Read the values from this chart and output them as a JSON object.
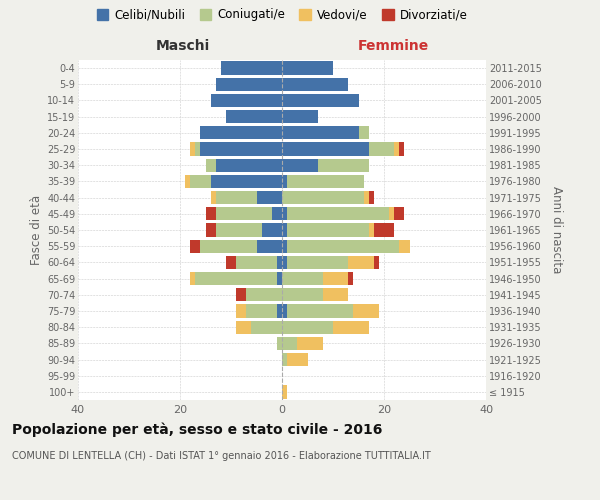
{
  "age_groups": [
    "100+",
    "95-99",
    "90-94",
    "85-89",
    "80-84",
    "75-79",
    "70-74",
    "65-69",
    "60-64",
    "55-59",
    "50-54",
    "45-49",
    "40-44",
    "35-39",
    "30-34",
    "25-29",
    "20-24",
    "15-19",
    "10-14",
    "5-9",
    "0-4"
  ],
  "birth_years": [
    "≤ 1915",
    "1916-1920",
    "1921-1925",
    "1926-1930",
    "1931-1935",
    "1936-1940",
    "1941-1945",
    "1946-1950",
    "1951-1955",
    "1956-1960",
    "1961-1965",
    "1966-1970",
    "1971-1975",
    "1976-1980",
    "1981-1985",
    "1986-1990",
    "1991-1995",
    "1996-2000",
    "2001-2005",
    "2006-2010",
    "2011-2015"
  ],
  "male": {
    "celibi": [
      0,
      0,
      0,
      0,
      0,
      1,
      0,
      1,
      1,
      5,
      4,
      2,
      5,
      14,
      13,
      16,
      16,
      11,
      14,
      13,
      12
    ],
    "coniugati": [
      0,
      0,
      0,
      1,
      6,
      6,
      7,
      16,
      8,
      11,
      9,
      11,
      8,
      4,
      2,
      1,
      0,
      0,
      0,
      0,
      0
    ],
    "vedovi": [
      0,
      0,
      0,
      0,
      3,
      2,
      0,
      1,
      0,
      0,
      0,
      0,
      1,
      1,
      0,
      1,
      0,
      0,
      0,
      0,
      0
    ],
    "divorziati": [
      0,
      0,
      0,
      0,
      0,
      0,
      2,
      0,
      2,
      2,
      2,
      2,
      0,
      0,
      0,
      0,
      0,
      0,
      0,
      0,
      0
    ]
  },
  "female": {
    "nubili": [
      0,
      0,
      0,
      0,
      0,
      1,
      0,
      0,
      1,
      1,
      1,
      1,
      0,
      1,
      7,
      17,
      15,
      7,
      15,
      13,
      10
    ],
    "coniugate": [
      0,
      0,
      1,
      3,
      10,
      13,
      8,
      8,
      12,
      22,
      16,
      20,
      16,
      15,
      10,
      5,
      2,
      0,
      0,
      0,
      0
    ],
    "vedove": [
      1,
      0,
      4,
      5,
      7,
      5,
      5,
      5,
      5,
      2,
      1,
      1,
      1,
      0,
      0,
      1,
      0,
      0,
      0,
      0,
      0
    ],
    "divorziate": [
      0,
      0,
      0,
      0,
      0,
      0,
      0,
      1,
      1,
      0,
      4,
      2,
      1,
      0,
      0,
      1,
      0,
      0,
      0,
      0,
      0
    ]
  },
  "colors": {
    "celibi": "#4472a8",
    "coniugati": "#b5c98e",
    "vedovi": "#f0c060",
    "divorziati": "#c0392b"
  },
  "xlim": 40,
  "title": "Popolazione per età, sesso e stato civile - 2016",
  "subtitle": "COMUNE DI LENTELLA (CH) - Dati ISTAT 1° gennaio 2016 - Elaborazione TUTTITALIA.IT",
  "ylabel_left": "Fasce di età",
  "ylabel_right": "Anni di nascita",
  "xlabel_left": "Maschi",
  "xlabel_right": "Femmine",
  "bg_color": "#f0f0eb",
  "plot_bg": "#ffffff"
}
